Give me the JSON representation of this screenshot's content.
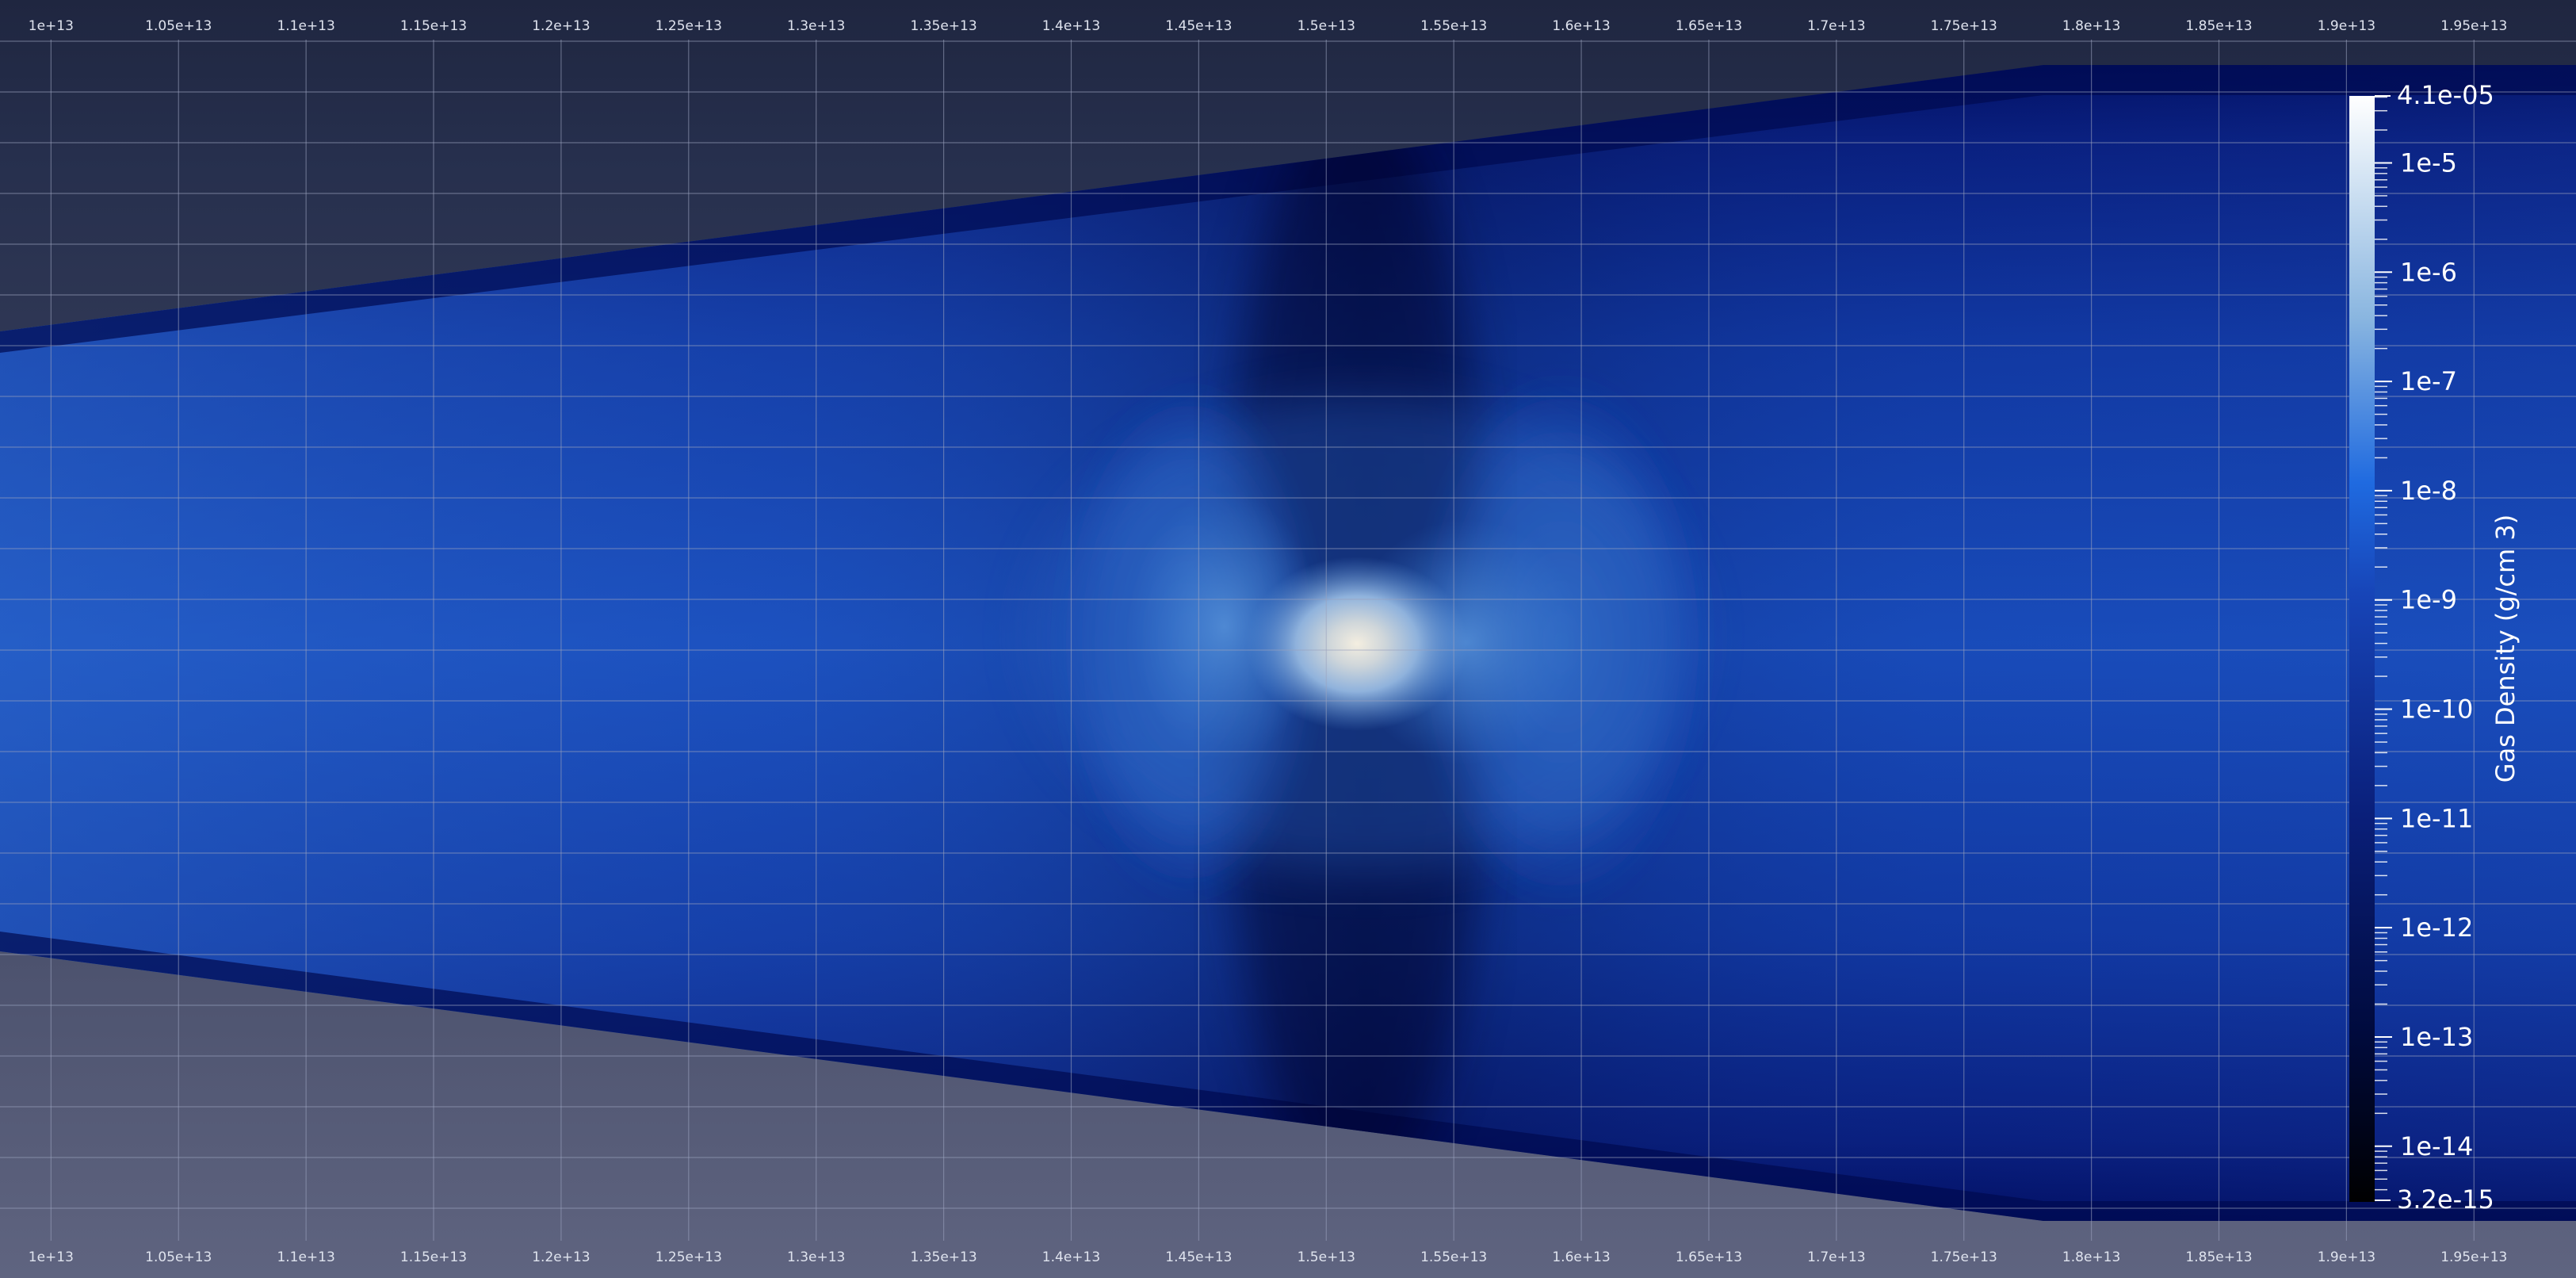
{
  "chart_data": {
    "type": "heatmap",
    "title": "",
    "xlabel": "",
    "ylabel": "",
    "x_ticks": [
      "1e+13",
      "1.05e+13",
      "1.1e+13",
      "1.15e+13",
      "1.2e+13",
      "1.25e+13",
      "1.3e+13",
      "1.35e+13",
      "1.4e+13",
      "1.45e+13",
      "1.5e+13",
      "1.55e+13",
      "1.6e+13",
      "1.65e+13",
      "1.7e+13",
      "1.75e+13",
      "1.8e+13",
      "1.85e+13",
      "1.9e+13",
      "1.95e+13"
    ],
    "x_tick_values": [
      10000000000000.0,
      10500000000000.0,
      11000000000000.0,
      11500000000000.0,
      12000000000000.0,
      12500000000000.0,
      13000000000000.0,
      13500000000000.0,
      14000000000000.0,
      14500000000000.0,
      15000000000000.0,
      15500000000000.0,
      16000000000000.0,
      16500000000000.0,
      17000000000000.0,
      17500000000000.0,
      18000000000000.0,
      18500000000000.0,
      19000000000000.0,
      19500000000000.0
    ],
    "xlim": [
      9800000000000.0,
      19900000000000.0
    ],
    "grid": true,
    "field": "Gas Density (g/cm 3)",
    "colorbar": {
      "title": "Gas Density (g/cm 3)",
      "scale": "log",
      "range": [
        3.2e-15,
        4.1e-05
      ],
      "range_labels": [
        "3.2e-15",
        "4.1e-05"
      ],
      "tick_labels": [
        "1e-5",
        "1e-6",
        "1e-7",
        "1e-8",
        "1e-9",
        "1e-10",
        "1e-11",
        "1e-12",
        "1e-13",
        "1e-14"
      ],
      "tick_values": [
        1e-05,
        1e-06,
        1e-07,
        1e-08,
        1e-09,
        1e-10,
        1e-11,
        1e-12,
        1e-13,
        1e-14
      ],
      "placement": "right",
      "colors": [
        "#000000",
        "#000a3c",
        "#0a1f7a",
        "#1745b8",
        "#3c78c8",
        "#8ab6e0",
        "#ffffff"
      ]
    },
    "density_peak": {
      "x": 14970000000000.0,
      "value": 4.1e-05
    }
  },
  "colors": {
    "background_top": "#262f4d",
    "background_bottom": "#5a5f7a",
    "domain_base": "#1440a8",
    "domain_dark_edge": "#000d5a",
    "grid_line": "#9aa3bd",
    "tick_text": "#dfe3ee",
    "colorbar_text": "#ffffff"
  }
}
